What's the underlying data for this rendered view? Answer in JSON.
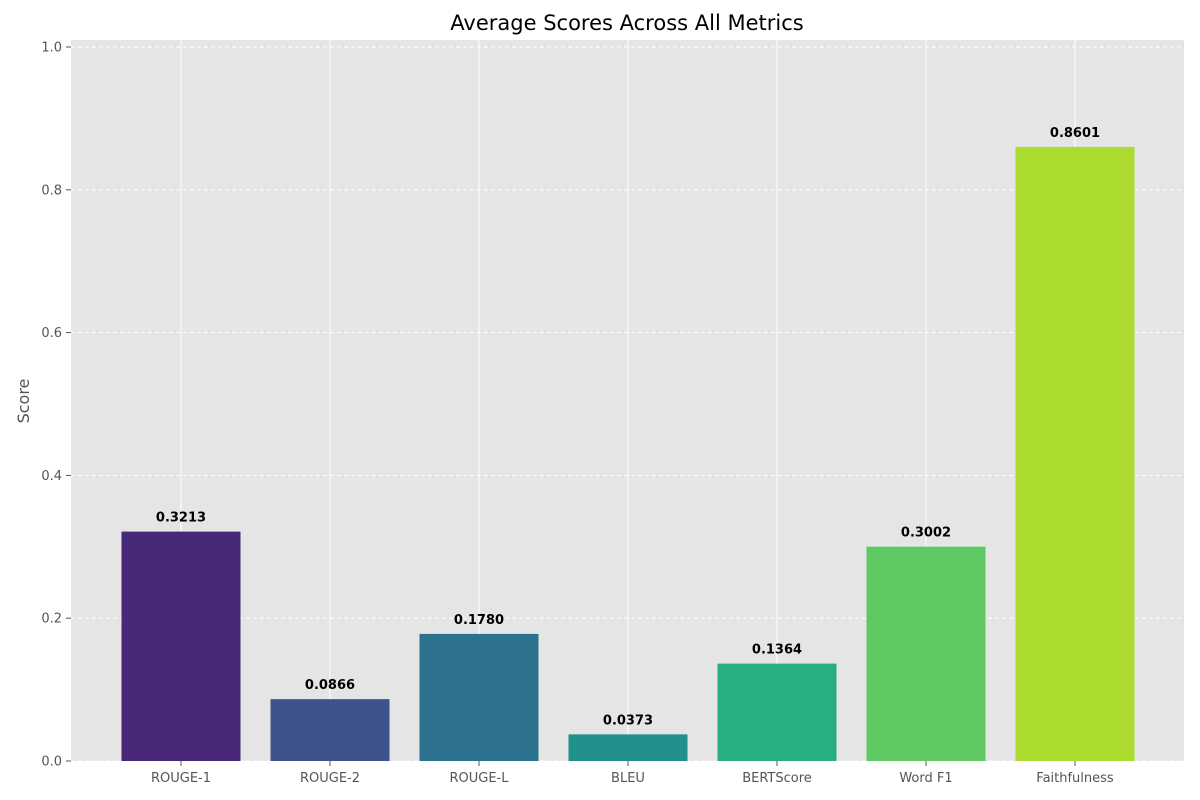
{
  "chart_data": {
    "type": "bar",
    "title": "Average Scores Across All Metrics",
    "xlabel": "",
    "ylabel": "Score",
    "ylim": [
      0,
      1.0
    ],
    "yticks": [
      "0.0",
      "0.2",
      "0.4",
      "0.6",
      "0.8",
      "1.0"
    ],
    "ytick_values": [
      0,
      0.2,
      0.4,
      0.6,
      0.8,
      1.0
    ],
    "categories": [
      "ROUGE-1",
      "ROUGE-2",
      "ROUGE-L",
      "BLEU",
      "BERTScore",
      "Word F1",
      "Faithfulness"
    ],
    "values": [
      0.3213,
      0.0866,
      0.178,
      0.0373,
      0.1364,
      0.3002,
      0.8601
    ],
    "value_labels": [
      "0.3213",
      "0.0866",
      "0.1780",
      "0.0373",
      "0.1364",
      "0.3002",
      "0.8601"
    ],
    "colors": [
      "#482878",
      "#3e538b",
      "#2c718e",
      "#21918c",
      "#28ae80",
      "#5ec962",
      "#addc30"
    ],
    "grid": true,
    "background": "#e5e5e5"
  }
}
